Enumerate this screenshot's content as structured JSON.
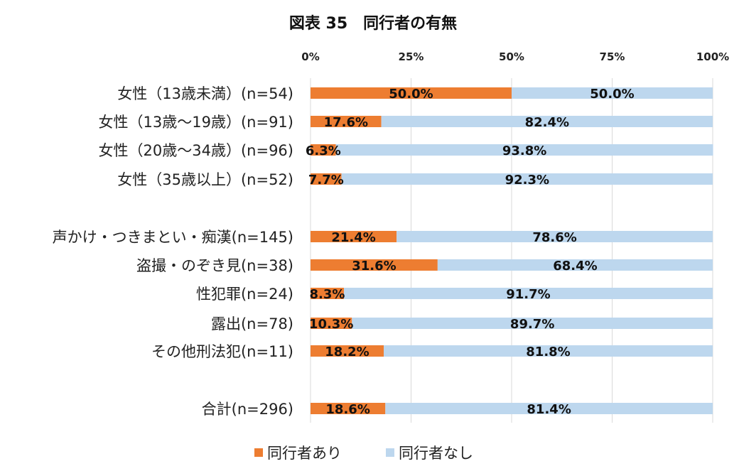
{
  "chart_data": {
    "type": "bar",
    "orientation": "horizontal",
    "stacked": "100%",
    "title": "図表 35　同行者の有無",
    "xlim": [
      0,
      100
    ],
    "x_ticks": [
      "0%",
      "25%",
      "50%",
      "75%",
      "100%"
    ],
    "grid": "vertical",
    "legend_position": "bottom",
    "categories": [
      "女性（13歳未満）(n=54)",
      "女性（13歳～19歳）(n=91)",
      "女性（20歳～34歳）(n=96)",
      "女性（35歳以上）(n=52)",
      "声かけ・つきまとい・痴漢(n=145)",
      "盗撮・のぞき見(n=38)",
      "性犯罪(n=24)",
      "露出(n=78)",
      "その他刑法犯(n=11)",
      "合計(n=296)"
    ],
    "series": [
      {
        "name": "同行者あり",
        "color": "#ED7D31",
        "values": [
          50.0,
          17.6,
          6.3,
          7.7,
          21.4,
          31.6,
          8.3,
          10.3,
          18.2,
          18.6
        ],
        "labels": [
          "50.0%",
          "17.6%",
          "6.3%",
          "7.7%",
          "21.4%",
          "31.6%",
          "8.3%",
          "10.3%",
          "18.2%",
          "18.6%"
        ]
      },
      {
        "name": "同行者なし",
        "color": "#BDD7EE",
        "values": [
          50.0,
          82.4,
          93.8,
          92.3,
          78.6,
          68.4,
          91.7,
          89.7,
          81.8,
          81.4
        ],
        "labels": [
          "50.0%",
          "82.4%",
          "93.8%",
          "92.3%",
          "78.6%",
          "68.4%",
          "91.7%",
          "89.7%",
          "81.8%",
          "81.4%"
        ]
      }
    ]
  }
}
